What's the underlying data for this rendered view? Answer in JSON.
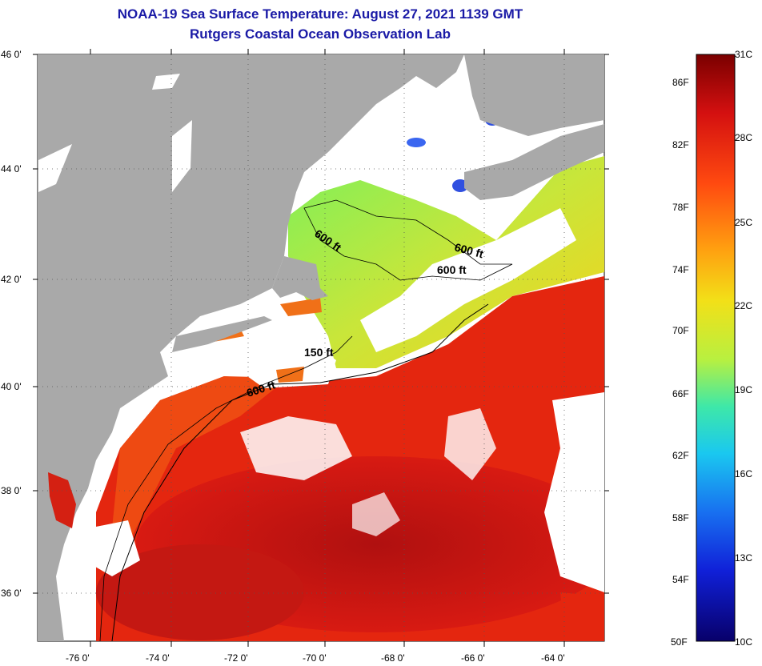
{
  "header": {
    "title": "NOAA-19 Sea Surface Temperature:  August 27, 2021 1139 GMT",
    "subtitle": "Rutgers Coastal Ocean Observation Lab"
  },
  "map": {
    "lat_labels": [
      "46 0'",
      "44 0'",
      "42 0'",
      "40 0'",
      "38 0'",
      "36 0'"
    ],
    "lon_labels": [
      "-76 0'",
      "-74 0'",
      "-72 0'",
      "-70 0'",
      "-68 0'",
      "-66 0'",
      "-64 0'"
    ],
    "contour_labels": [
      "600 ft",
      "600 ft",
      "600 ft",
      "150 ft",
      "600 ft"
    ],
    "colors": {
      "land": "#a9a9a9",
      "cloud": "#ffffff",
      "warm_water": "#e8200c",
      "hot_water": "#b41010",
      "cool_water": "#f2d81a",
      "cold_water": "#6fe26a"
    }
  },
  "colorbar": {
    "fahrenheit_labels": [
      "86F",
      "82F",
      "78F",
      "74F",
      "70F",
      "66F",
      "62F",
      "58F",
      "54F",
      "50F"
    ],
    "celsius_labels": [
      "31C",
      "28C",
      "25C",
      "22C",
      "19C",
      "16C",
      "13C",
      "10C"
    ]
  }
}
